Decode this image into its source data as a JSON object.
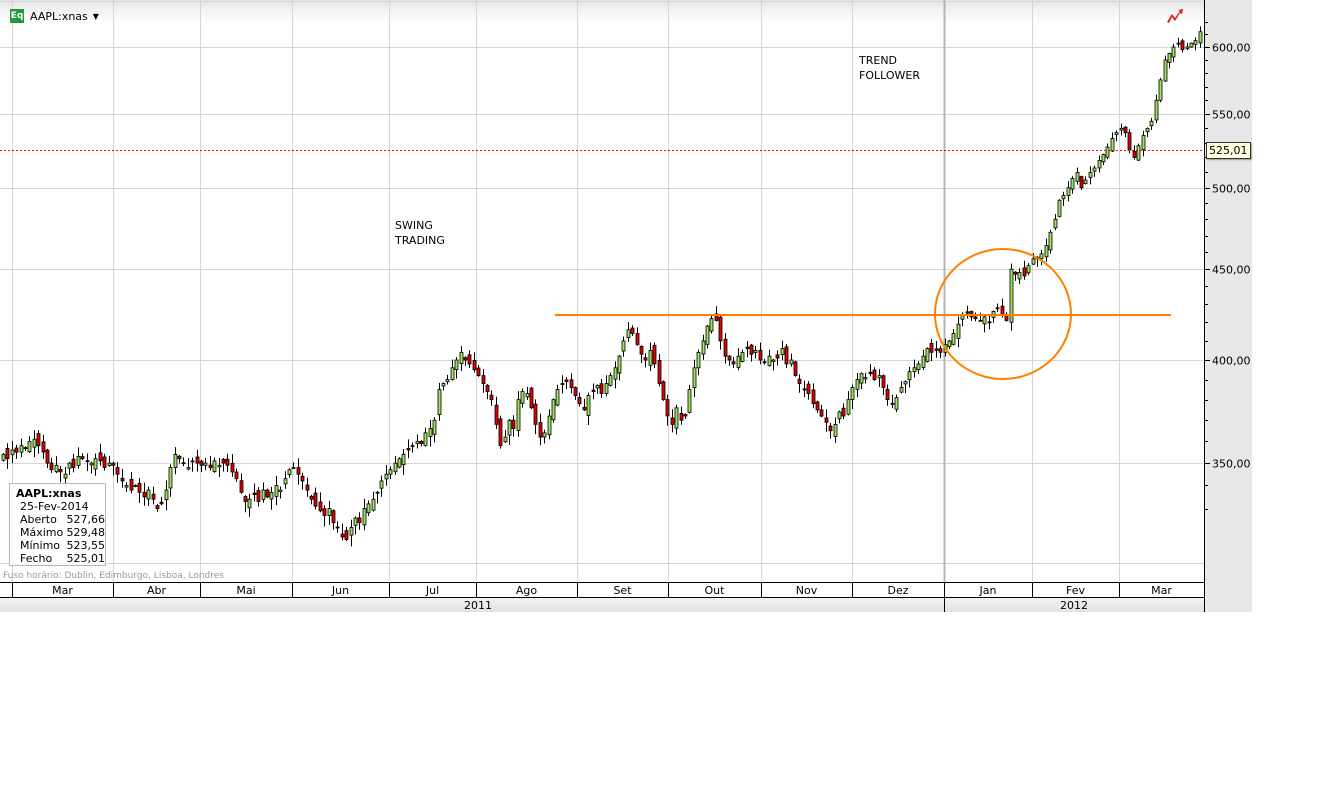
{
  "header": {
    "badge": "Eq",
    "symbol": "AAPL:xnas"
  },
  "annotations": {
    "swing": [
      "SWING",
      "TRADING"
    ],
    "trend": [
      "TREND",
      "FOLLOWER"
    ]
  },
  "legend": {
    "symbol": "AAPL:xnas",
    "date": "25-Fev-2014",
    "rows": [
      {
        "label": "Aberto",
        "value": "527,66"
      },
      {
        "label": "Máximo",
        "value": "529,48"
      },
      {
        "label": "Mínimo",
        "value": "523,55"
      },
      {
        "label": "Fecho",
        "value": "525,01"
      }
    ]
  },
  "timezone": "Fuso horário: Dublin, Edimburgo, Lisboa, Londres",
  "last_price_label": "525,01",
  "colors": {
    "up": "#9be45f",
    "down": "#e00000",
    "annotation": "#ff8000",
    "last_line": "#ff0000"
  },
  "chart_data": {
    "type": "candlestick",
    "title": "AAPL:xnas",
    "y_scale": "log",
    "ylim": [
      300,
      625
    ],
    "y_ticks": [
      350,
      400,
      450,
      500,
      550,
      600
    ],
    "y_tick_labels": [
      "350,00",
      "400,00",
      "450,00",
      "500,00",
      "550,00",
      "600,00"
    ],
    "months": [
      "Mar",
      "Abr",
      "Mai",
      "Jun",
      "Jul",
      "Ago",
      "Set",
      "Out",
      "Nov",
      "Dez",
      "Jan",
      "Fev",
      "Mar"
    ],
    "years": [
      "2011",
      "2012"
    ],
    "last_price": 525.01,
    "resistance_level": 424,
    "closes": [
      354,
      352,
      356,
      355,
      358,
      357,
      360,
      361,
      358,
      355,
      350,
      347,
      349,
      346,
      345,
      350,
      348,
      353,
      352,
      351,
      350,
      352,
      351,
      348,
      350,
      349,
      345,
      342,
      340,
      338,
      340,
      337,
      335,
      338,
      334,
      330,
      332,
      338,
      348,
      354,
      352,
      350,
      348,
      351,
      350,
      349,
      350,
      348,
      351,
      349,
      350,
      349,
      346,
      343,
      337,
      333,
      334,
      336,
      333,
      338,
      335,
      337,
      340,
      338,
      343,
      347,
      348,
      345,
      342,
      338,
      334,
      331,
      329,
      327,
      330,
      324,
      322,
      318,
      317,
      322,
      326,
      324,
      330,
      332,
      334,
      337,
      342,
      345,
      347,
      350,
      352,
      354,
      356,
      358,
      360,
      359,
      364,
      366,
      370,
      385,
      388,
      390,
      396,
      400,
      404,
      400,
      398,
      395,
      392,
      388,
      384,
      380,
      368,
      358,
      362,
      370,
      366,
      380,
      384,
      383,
      376,
      368,
      362,
      364,
      372,
      380,
      385,
      388,
      389,
      386,
      382,
      378,
      375,
      382,
      384,
      387,
      383,
      388,
      392,
      396,
      402,
      410,
      416,
      414,
      408,
      403,
      400,
      405,
      398,
      388,
      380,
      372,
      368,
      376,
      370,
      372,
      385,
      396,
      404,
      410,
      418,
      422,
      421,
      410,
      402,
      400,
      398,
      402,
      404,
      406,
      403,
      405,
      400,
      399,
      402,
      400,
      401,
      406,
      398,
      400,
      392,
      388,
      385,
      383,
      378,
      375,
      372,
      369,
      365,
      368,
      374,
      372,
      380,
      386,
      390,
      393,
      391,
      393,
      390,
      392,
      386,
      380,
      378,
      381,
      386,
      389,
      394,
      396,
      398,
      402,
      406,
      404,
      405,
      404,
      408,
      410,
      414,
      419,
      424,
      425,
      423,
      422,
      421,
      423,
      420,
      426,
      428,
      424,
      421,
      450,
      447,
      448,
      446,
      452,
      456,
      457,
      459,
      464,
      472,
      480,
      492,
      495,
      500,
      506,
      510,
      500,
      505,
      510,
      513,
      518,
      522,
      527,
      533,
      537,
      540,
      537,
      525,
      520,
      528,
      535,
      540,
      545,
      560,
      575,
      590,
      595,
      600,
      603,
      598,
      600,
      603,
      605,
      612
    ]
  }
}
